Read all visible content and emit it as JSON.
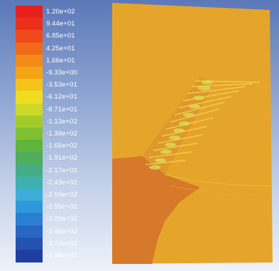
{
  "colormap": {
    "labels": [
      "1.20e+02",
      "9.44e+01",
      "6.85e+01",
      "4.25e+01",
      "1.66e+01",
      "-9.33e+00",
      "-3.53e+01",
      "-6.12e+01",
      "-8.71e+01",
      "-1.13e+02",
      "-1.39e+02",
      "-1.65e+02",
      "-1.91e+02",
      "-2.17e+02",
      "-2.43e+02",
      "-2.69e+02",
      "-2.95e+02",
      "-3.20e+02",
      "-3.46e+02",
      "-3.72e+02",
      "-3.98e+02"
    ],
    "colors": [
      "#e8201c",
      "#ec2f1a",
      "#ef4a19",
      "#f06a18",
      "#f28a18",
      "#f5a418",
      "#f4c41a",
      "#f0dd20",
      "#cbd826",
      "#a3cc2b",
      "#7fc033",
      "#5fb43a",
      "#4fae5c",
      "#44ad88",
      "#3fb0b0",
      "#3cadd8",
      "#2f98db",
      "#2a7fd3",
      "#2866c2",
      "#2452b1",
      "#1e3f9f"
    ]
  },
  "plot": {
    "background_color": "#e5a52a",
    "lower_region_color": "#d97a26"
  }
}
